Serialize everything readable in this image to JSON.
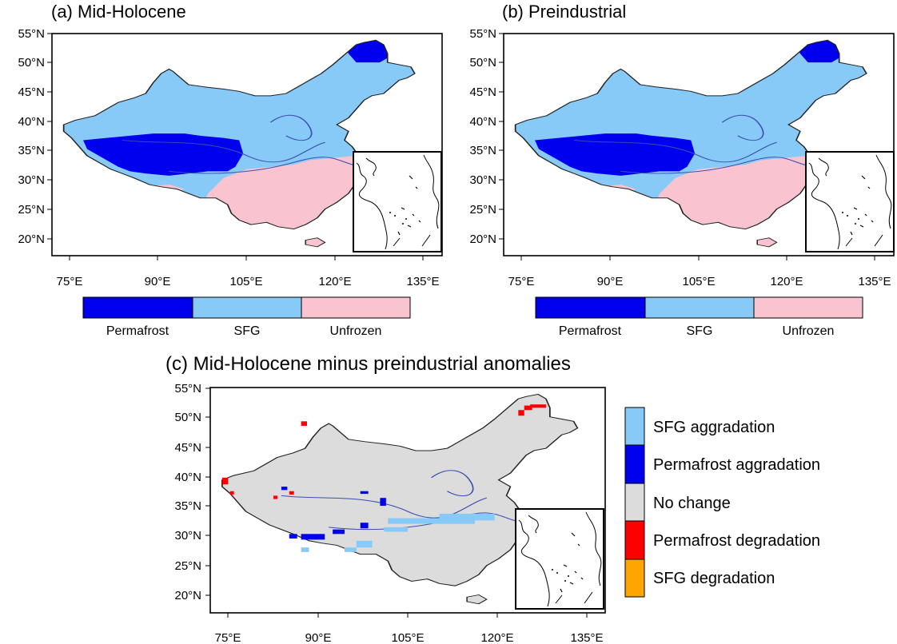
{
  "colors": {
    "permafrost": "#0000ee",
    "sfg": "#87c9f7",
    "unfrozen": "#f9c3cf",
    "no_change": "#dcdcdc",
    "permafrost_degradation": "#ff0000",
    "sfg_degradation": "#ffa500",
    "rivers": "#3a4fb0"
  },
  "panels": {
    "a": {
      "title": "(a) Mid-Holocene"
    },
    "b": {
      "title": "(b) Preindustrial"
    },
    "c": {
      "title": "(c) Mid-Holocene minus preindustrial anomalies"
    }
  },
  "axes": {
    "lat_ticks": [
      "55°N",
      "50°N",
      "45°N",
      "40°N",
      "35°N",
      "30°N",
      "25°N",
      "20°N"
    ],
    "lon_ticks": [
      "75°E",
      "90°E",
      "105°E",
      "120°E",
      "135°E"
    ]
  },
  "colorbar": {
    "labels": [
      "Permafrost",
      "SFG",
      "Unfrozen"
    ]
  },
  "legend_c": {
    "items": [
      {
        "label": "SFG aggradation",
        "color": "#87c9f7"
      },
      {
        "label": "Permafrost aggradation",
        "color": "#0000ee"
      },
      {
        "label": "No change",
        "color": "#dcdcdc"
      },
      {
        "label": "Permafrost degradation",
        "color": "#ff0000"
      },
      {
        "label": "SFG degradation",
        "color": "#ffa500"
      }
    ]
  }
}
